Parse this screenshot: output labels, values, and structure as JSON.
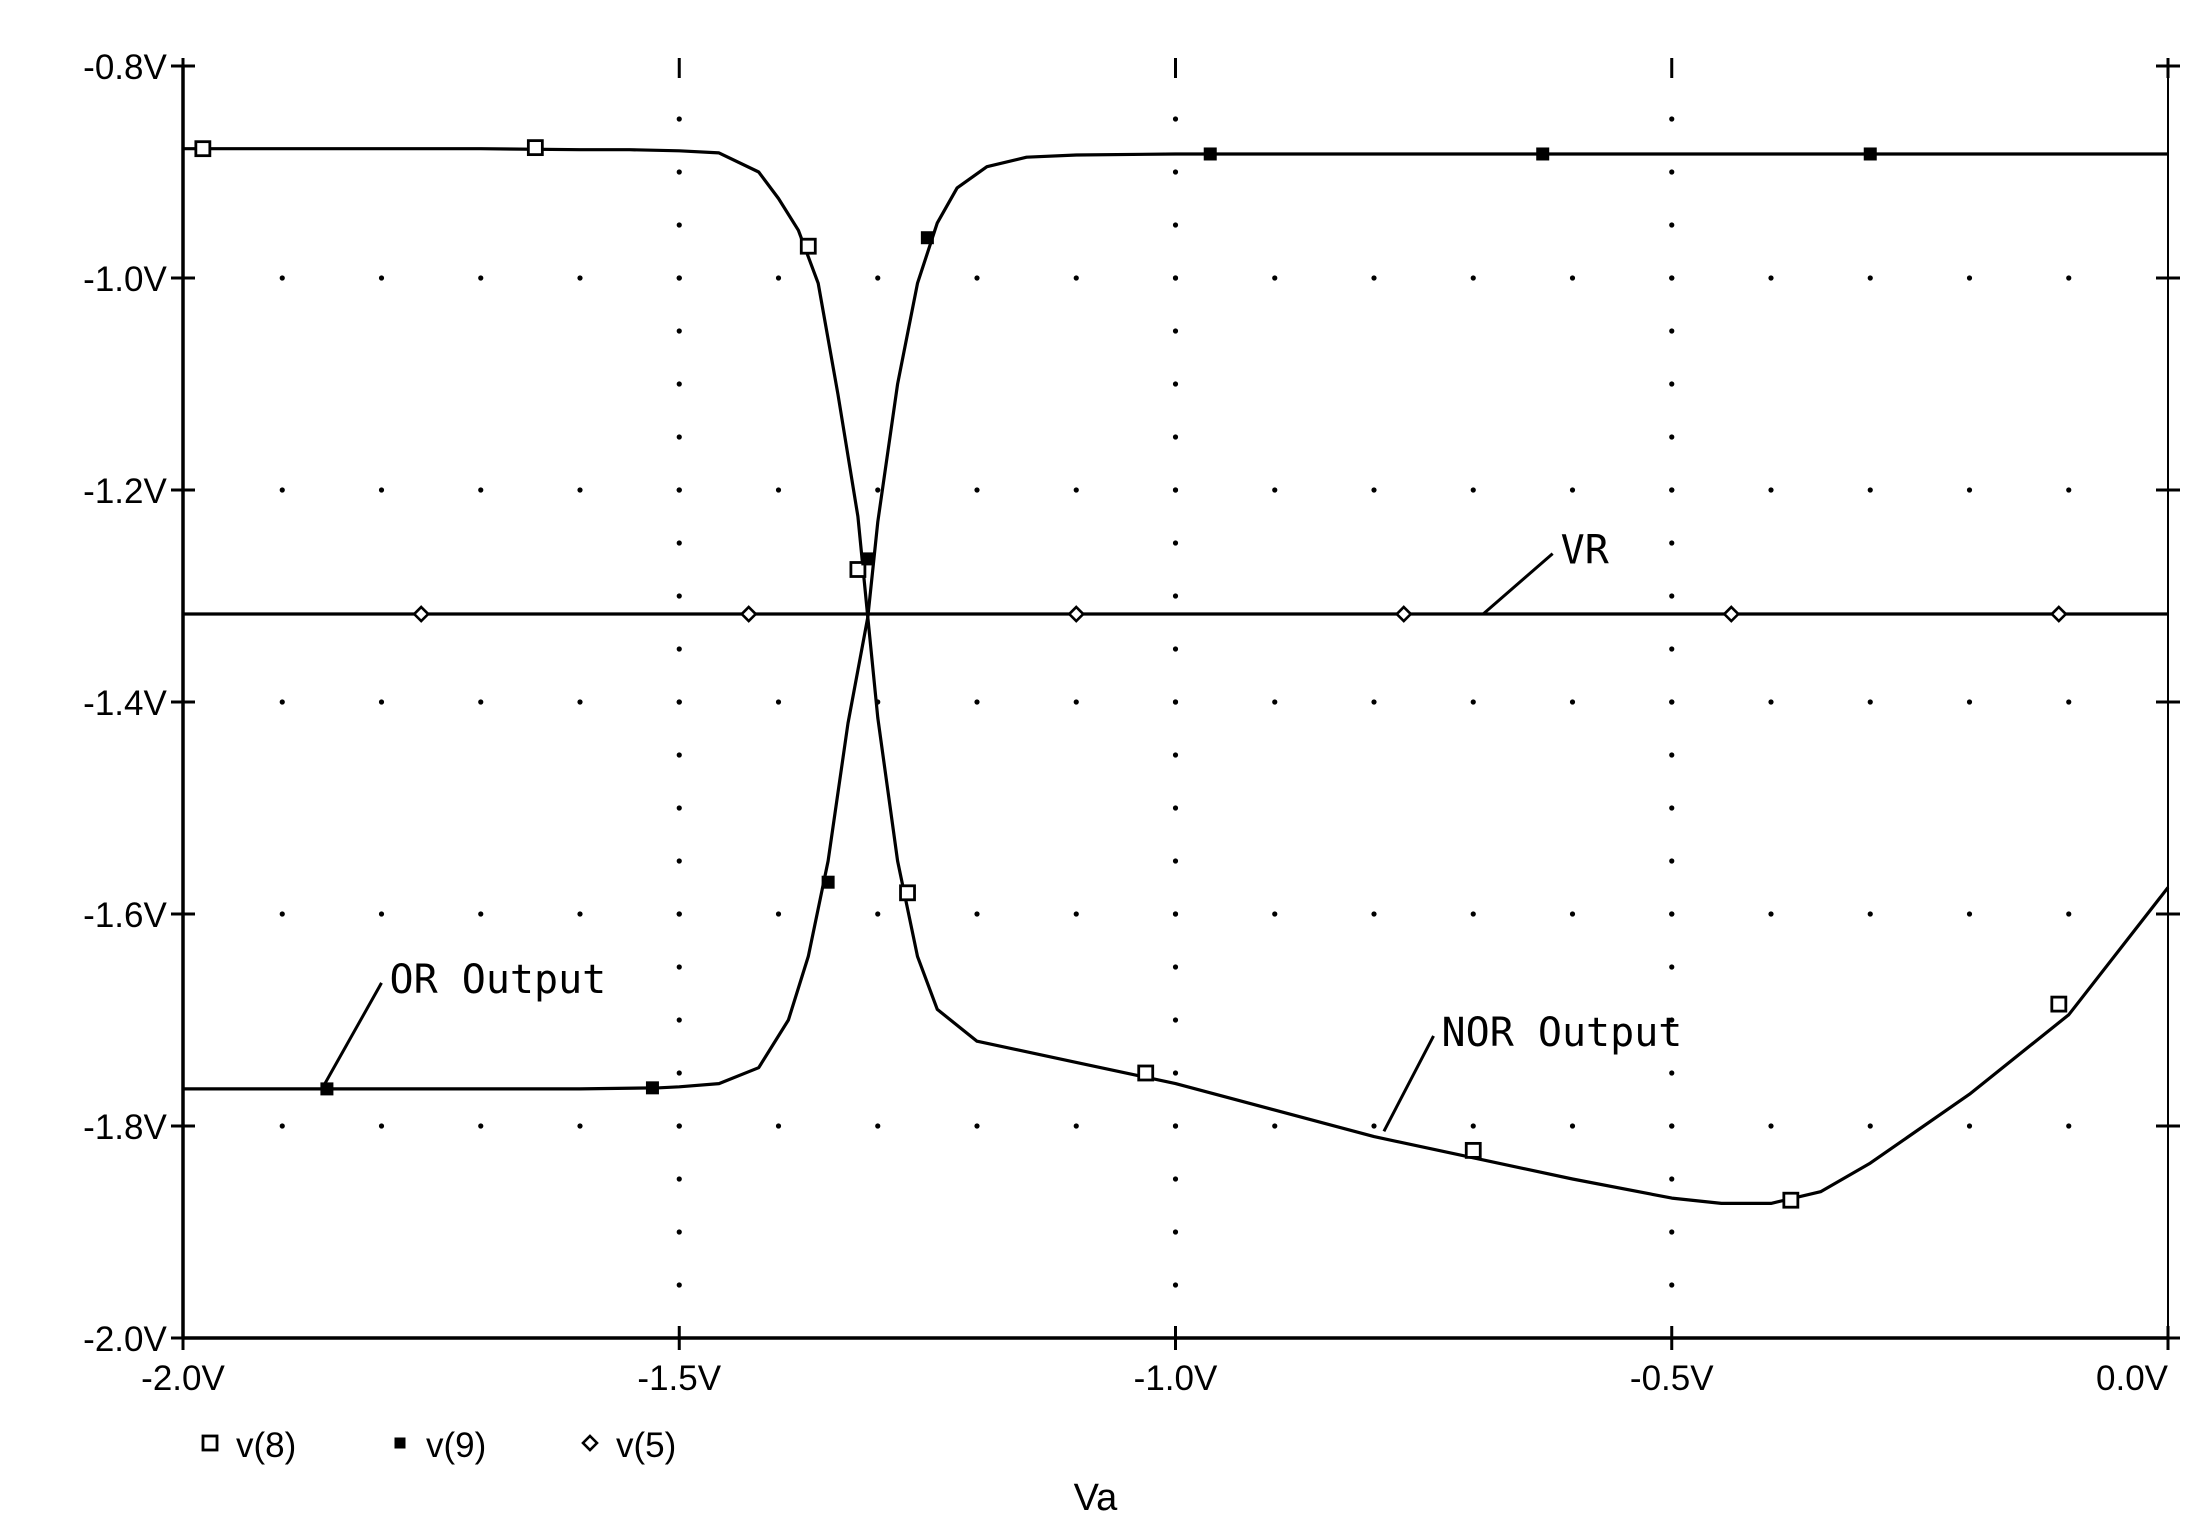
{
  "chart_data": {
    "type": "line",
    "title": "",
    "xlabel": "Va",
    "ylabel": "",
    "xlim": [
      -2.0,
      0.0
    ],
    "ylim": [
      -2.0,
      -0.8
    ],
    "x_ticks": [
      -2.0,
      -1.5,
      -1.0,
      -0.5,
      0.0
    ],
    "x_tick_labels": [
      "-2.0V",
      "-1.5V",
      "-1.0V",
      "-0.5V",
      "0.0V"
    ],
    "y_ticks": [
      -0.8,
      -1.0,
      -1.2,
      -1.4,
      -1.6,
      -1.8,
      -2.0
    ],
    "y_tick_labels": [
      "-0.8V",
      "-1.0V",
      "-1.2V",
      "-1.4V",
      "-1.6V",
      "-1.8V",
      "-2.0V"
    ],
    "grid": "dotted",
    "legend_position": "bottom-left",
    "series": [
      {
        "name": "v(8)",
        "marker": "open-square",
        "points": [
          [
            -2.0,
            -0.878
          ],
          [
            -1.9,
            -0.878
          ],
          [
            -1.8,
            -0.878
          ],
          [
            -1.7,
            -0.878
          ],
          [
            -1.6,
            -0.879
          ],
          [
            -1.55,
            -0.879
          ],
          [
            -1.5,
            -0.88
          ],
          [
            -1.46,
            -0.882
          ],
          [
            -1.42,
            -0.9
          ],
          [
            -1.4,
            -0.925
          ],
          [
            -1.38,
            -0.955
          ],
          [
            -1.36,
            -1.005
          ],
          [
            -1.34,
            -1.11
          ],
          [
            -1.32,
            -1.225
          ],
          [
            -1.31,
            -1.32
          ],
          [
            -1.3,
            -1.415
          ],
          [
            -1.28,
            -1.55
          ],
          [
            -1.26,
            -1.64
          ],
          [
            -1.24,
            -1.69
          ],
          [
            -1.2,
            -1.72
          ],
          [
            -1.1,
            -1.74
          ],
          [
            -1.0,
            -1.76
          ],
          [
            -0.9,
            -1.785
          ],
          [
            -0.8,
            -1.81
          ],
          [
            -0.7,
            -1.83
          ],
          [
            -0.6,
            -1.85
          ],
          [
            -0.5,
            -1.868
          ],
          [
            -0.45,
            -1.873
          ],
          [
            -0.4,
            -1.873
          ],
          [
            -0.35,
            -1.862
          ],
          [
            -0.3,
            -1.835
          ],
          [
            -0.2,
            -1.77
          ],
          [
            -0.1,
            -1.695
          ],
          [
            0.0,
            -1.575
          ]
        ],
        "marker_points": [
          [
            -1.98,
            -0.878
          ],
          [
            -1.645,
            -0.877
          ],
          [
            -1.37,
            -0.97
          ],
          [
            -1.32,
            -1.275
          ],
          [
            -1.27,
            -1.58
          ],
          [
            -1.03,
            -1.75
          ],
          [
            -0.7,
            -1.823
          ],
          [
            -0.38,
            -1.87
          ],
          [
            -0.11,
            -1.685
          ]
        ]
      },
      {
        "name": "v(9)",
        "marker": "filled-square",
        "points": [
          [
            -2.0,
            -1.765
          ],
          [
            -1.8,
            -1.765
          ],
          [
            -1.6,
            -1.765
          ],
          [
            -1.52,
            -1.764
          ],
          [
            -1.5,
            -1.763
          ],
          [
            -1.46,
            -1.76
          ],
          [
            -1.42,
            -1.745
          ],
          [
            -1.39,
            -1.7
          ],
          [
            -1.37,
            -1.64
          ],
          [
            -1.35,
            -1.55
          ],
          [
            -1.33,
            -1.42
          ],
          [
            -1.31,
            -1.32
          ],
          [
            -1.3,
            -1.23
          ],
          [
            -1.28,
            -1.1
          ],
          [
            -1.26,
            -1.005
          ],
          [
            -1.24,
            -0.948
          ],
          [
            -1.22,
            -0.915
          ],
          [
            -1.19,
            -0.895
          ],
          [
            -1.15,
            -0.886
          ],
          [
            -1.1,
            -0.884
          ],
          [
            -1.0,
            -0.883
          ],
          [
            -0.8,
            -0.883
          ],
          [
            -0.6,
            -0.883
          ],
          [
            -0.4,
            -0.883
          ],
          [
            -0.2,
            -0.883
          ],
          [
            0.0,
            -0.883
          ]
        ],
        "marker_points": [
          [
            -1.855,
            -1.765
          ],
          [
            -1.527,
            -1.764
          ],
          [
            -1.35,
            -1.57
          ],
          [
            -1.31,
            -1.265
          ],
          [
            -1.25,
            -0.962
          ],
          [
            -0.965,
            -0.883
          ],
          [
            -0.63,
            -0.883
          ],
          [
            -0.3,
            -0.883
          ]
        ]
      },
      {
        "name": "v(5)",
        "marker": "open-diamond",
        "points": [
          [
            -2.0,
            -1.317
          ],
          [
            0.0,
            -1.317
          ]
        ],
        "marker_points": [
          [
            -1.76,
            -1.317
          ],
          [
            -1.43,
            -1.317
          ],
          [
            -1.1,
            -1.317
          ],
          [
            -0.77,
            -1.317
          ],
          [
            -0.44,
            -1.317
          ],
          [
            -0.11,
            -1.317
          ]
        ]
      }
    ],
    "annotations": [
      {
        "text": "VR",
        "x": -0.69,
        "y": -1.317,
        "label_x": -0.62,
        "label_y": -1.26
      },
      {
        "text": "OR Output",
        "x": -1.86,
        "y": -1.765,
        "label_x": -1.8,
        "label_y": -1.665
      },
      {
        "text": "NOR Output",
        "x": -0.79,
        "y": -1.805,
        "label_x": -0.74,
        "label_y": -1.715
      }
    ]
  }
}
